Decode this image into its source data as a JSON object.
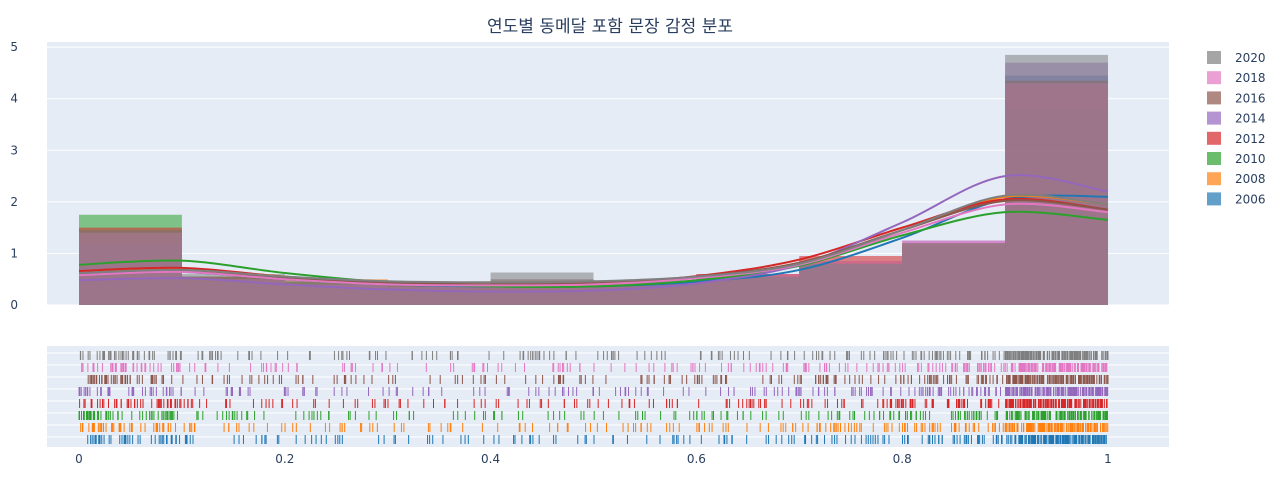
{
  "chart_data": {
    "type": "histogram",
    "title": "연도별 동메달 포함 문장 감정 분포",
    "xlabel": "",
    "ylabel": "",
    "xlim": [
      0,
      1
    ],
    "ylim": [
      0,
      5.1
    ],
    "x_ticks": [
      "0",
      "0.2",
      "0.4",
      "0.6",
      "0.8",
      "1"
    ],
    "y_ticks": [
      "0",
      "1",
      "2",
      "3",
      "4",
      "5"
    ],
    "bins": [
      [
        0,
        0.1
      ],
      [
        0.1,
        0.2
      ],
      [
        0.2,
        0.3
      ],
      [
        0.3,
        0.4
      ],
      [
        0.4,
        0.5
      ],
      [
        0.5,
        0.6
      ],
      [
        0.6,
        0.7
      ],
      [
        0.7,
        0.8
      ],
      [
        0.8,
        0.9
      ],
      [
        0.9,
        1.0
      ]
    ],
    "legend_position": "right",
    "series": [
      {
        "name": "2020",
        "color": "#7f7f7f",
        "values": [
          1.45,
          0.6,
          0.48,
          0.4,
          0.63,
          0.48,
          0.55,
          0.8,
          1.2,
          4.85
        ],
        "kde": [
          0.62,
          0.68,
          0.55,
          0.46,
          0.44,
          0.46,
          0.55,
          0.8,
          1.45,
          2.12,
          1.95
        ]
      },
      {
        "name": "2018",
        "color": "#e377c2",
        "values": [
          1.4,
          0.5,
          0.4,
          0.35,
          0.45,
          0.45,
          0.6,
          0.85,
          1.25,
          4.3
        ],
        "kde": [
          0.58,
          0.64,
          0.5,
          0.4,
          0.38,
          0.4,
          0.52,
          0.78,
          1.4,
          1.95,
          1.8
        ]
      },
      {
        "name": "2016",
        "color": "#8c564b",
        "values": [
          1.45,
          0.55,
          0.45,
          0.4,
          0.5,
          0.45,
          0.6,
          0.85,
          1.2,
          4.35
        ],
        "kde": [
          0.62,
          0.68,
          0.52,
          0.43,
          0.4,
          0.42,
          0.55,
          0.82,
          1.45,
          2.02,
          1.85
        ]
      },
      {
        "name": "2014",
        "color": "#9467bd",
        "values": [
          1.2,
          0.45,
          0.4,
          0.35,
          0.45,
          0.45,
          0.55,
          0.8,
          1.25,
          4.7
        ],
        "kde": [
          0.48,
          0.52,
          0.4,
          0.3,
          0.26,
          0.28,
          0.42,
          0.78,
          1.6,
          2.5,
          2.2
        ]
      },
      {
        "name": "2012",
        "color": "#d62728",
        "values": [
          1.5,
          0.55,
          0.4,
          0.4,
          0.45,
          0.45,
          0.6,
          0.95,
          1.2,
          4.25
        ],
        "kde": [
          0.66,
          0.72,
          0.55,
          0.44,
          0.4,
          0.42,
          0.56,
          0.88,
          1.5,
          2.05,
          1.85
        ]
      },
      {
        "name": "2010",
        "color": "#2ca02c",
        "values": [
          1.75,
          0.55,
          0.45,
          0.35,
          0.4,
          0.4,
          0.55,
          0.8,
          1.15,
          3.8
        ],
        "kde": [
          0.78,
          0.86,
          0.62,
          0.44,
          0.36,
          0.36,
          0.48,
          0.76,
          1.35,
          1.8,
          1.65
        ]
      },
      {
        "name": "2008",
        "color": "#ff7f0e",
        "values": [
          1.4,
          0.5,
          0.5,
          0.35,
          0.4,
          0.45,
          0.6,
          0.85,
          1.2,
          4.3
        ],
        "kde": [
          0.64,
          0.7,
          0.55,
          0.42,
          0.38,
          0.4,
          0.54,
          0.82,
          1.45,
          2.1,
          1.95
        ]
      },
      {
        "name": "2006",
        "color": "#1f77b4",
        "values": [
          1.35,
          0.5,
          0.4,
          0.35,
          0.45,
          0.4,
          0.5,
          0.75,
          1.15,
          4.45
        ],
        "kde": [
          0.6,
          0.64,
          0.5,
          0.4,
          0.36,
          0.36,
          0.45,
          0.68,
          1.3,
          2.05,
          2.1
        ]
      }
    ]
  }
}
